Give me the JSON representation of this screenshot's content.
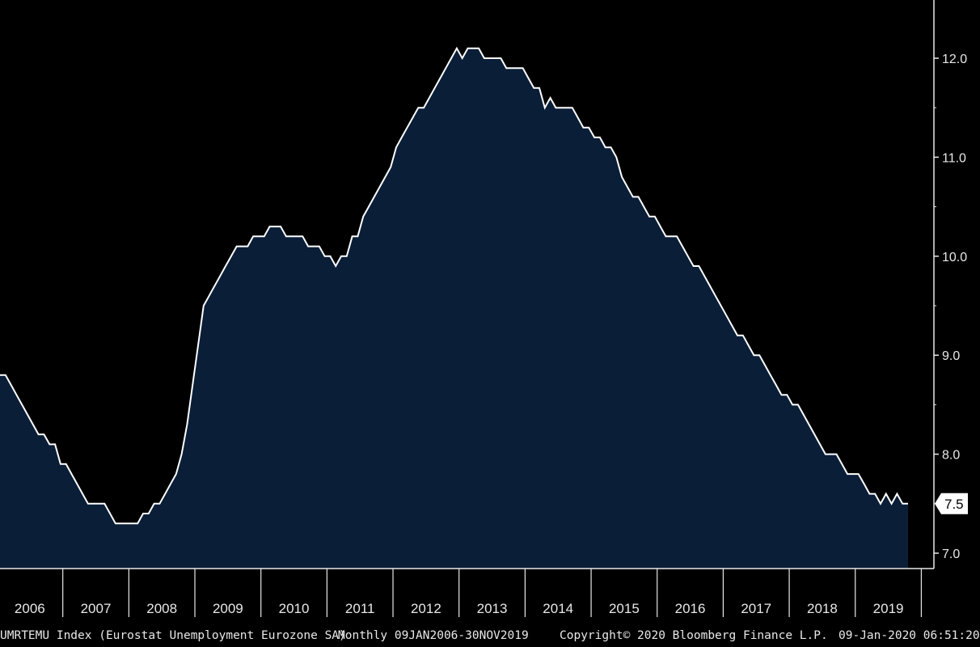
{
  "chart_data": {
    "type": "area",
    "x_start": "2006-01",
    "x_end": "2019-11",
    "frequency": "monthly",
    "x_tick_labels": [
      "2006",
      "2007",
      "2008",
      "2009",
      "2010",
      "2011",
      "2012",
      "2013",
      "2014",
      "2015",
      "2016",
      "2017",
      "2018",
      "2019"
    ],
    "y_tick_labels": [
      "12.0",
      "11.0",
      "10.0",
      "9.0",
      "8.0",
      "7.0"
    ],
    "ylim": [
      6.85,
      12.55
    ],
    "y_axis_position": "right",
    "grid": false,
    "last_value_label": "7.5",
    "series": [
      {
        "values": [
          8.8,
          8.8,
          8.7,
          8.6,
          8.5,
          8.4,
          8.3,
          8.2,
          8.2,
          8.1,
          8.1,
          7.9,
          7.9,
          7.8,
          7.7,
          7.6,
          7.5,
          7.5,
          7.5,
          7.5,
          7.4,
          7.3,
          7.3,
          7.3,
          7.3,
          7.3,
          7.4,
          7.4,
          7.5,
          7.5,
          7.6,
          7.7,
          7.8,
          8.0,
          8.3,
          8.7,
          9.1,
          9.5,
          9.6,
          9.7,
          9.8,
          9.9,
          10.0,
          10.1,
          10.1,
          10.1,
          10.2,
          10.2,
          10.2,
          10.3,
          10.3,
          10.3,
          10.2,
          10.2,
          10.2,
          10.2,
          10.1,
          10.1,
          10.1,
          10.0,
          10.0,
          9.9,
          10.0,
          10.0,
          10.2,
          10.2,
          10.4,
          10.5,
          10.6,
          10.7,
          10.8,
          10.9,
          11.1,
          11.2,
          11.3,
          11.4,
          11.5,
          11.5,
          11.6,
          11.7,
          11.8,
          11.9,
          12.0,
          12.1,
          12.0,
          12.1,
          12.1,
          12.1,
          12.0,
          12.0,
          12.0,
          12.0,
          11.9,
          11.9,
          11.9,
          11.9,
          11.8,
          11.7,
          11.7,
          11.5,
          11.6,
          11.5,
          11.5,
          11.5,
          11.5,
          11.4,
          11.3,
          11.3,
          11.2,
          11.2,
          11.1,
          11.1,
          11.0,
          10.8,
          10.7,
          10.6,
          10.6,
          10.5,
          10.4,
          10.4,
          10.3,
          10.2,
          10.2,
          10.2,
          10.1,
          10.0,
          9.9,
          9.9,
          9.8,
          9.7,
          9.6,
          9.5,
          9.4,
          9.3,
          9.2,
          9.2,
          9.1,
          9.0,
          9.0,
          8.9,
          8.8,
          8.7,
          8.6,
          8.6,
          8.5,
          8.5,
          8.4,
          8.3,
          8.2,
          8.1,
          8.0,
          8.0,
          8.0,
          7.9,
          7.8,
          7.8,
          7.8,
          7.7,
          7.6,
          7.6,
          7.5,
          7.6,
          7.5,
          7.6,
          7.5,
          7.5
        ]
      }
    ]
  },
  "footer": {
    "ticker_description": "UMRTEMU Index (Eurostat Unemployment Eurozone SA)",
    "frequency_range": "Monthly 09JAN2006-30NOV2019",
    "copyright": "Copyright© 2020 Bloomberg Finance L.P.",
    "timestamp": "09-Jan-2020 06:51:20"
  },
  "colors": {
    "background": "#000000",
    "area_fill": "#0a1e38",
    "line": "#ffffff",
    "text": "#e8e8e8"
  }
}
